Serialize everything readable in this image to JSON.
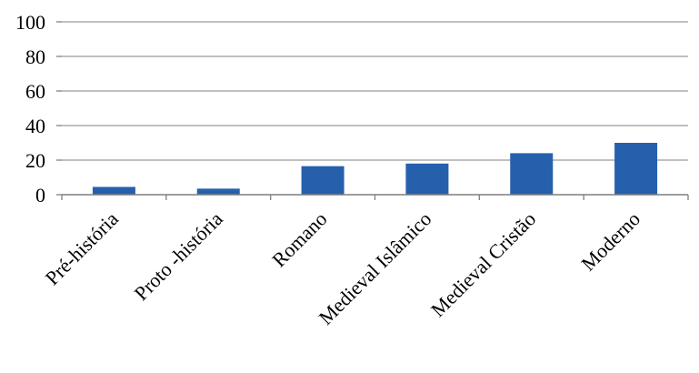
{
  "chart_data": {
    "type": "bar",
    "title": "",
    "xlabel": "",
    "ylabel": "",
    "categories": [
      "Pré-história",
      "Proto -história",
      "Romano",
      "Medieval Islâmico",
      "Medieval Cristão",
      "Moderno"
    ],
    "values": [
      4.5,
      3.5,
      16.5,
      18,
      24,
      30
    ],
    "ylim": [
      0,
      100
    ],
    "yticks": [
      "0",
      "20",
      "40",
      "60",
      "80",
      "100"
    ],
    "grid": true,
    "legend": "none",
    "colors": {
      "bar": "#2660AD",
      "grid": "#9a9a9a",
      "axis": "#7f7f7f"
    }
  }
}
